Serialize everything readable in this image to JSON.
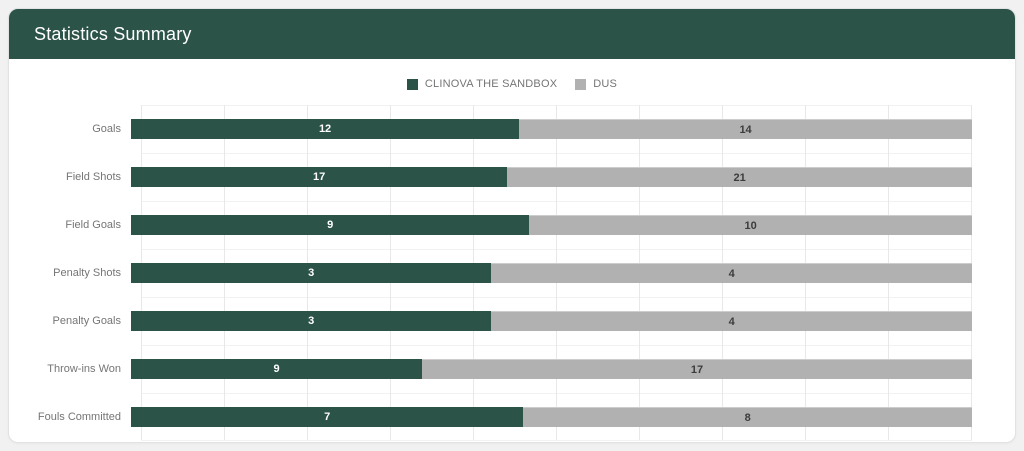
{
  "header": {
    "title": "Statistics Summary"
  },
  "colors": {
    "header_background": "#2b5348",
    "team_a_green": "#2b5348",
    "team_b_gray": "#b1b1b1",
    "label_gray": "#757575",
    "value_on_gray": "#3c3c3c",
    "gridline": "#e8e8e8",
    "card_background": "#ffffff",
    "page_background": "#f1f1f1"
  },
  "chart_data": {
    "type": "bar",
    "variant": "horizontal-100-percent-stacked",
    "title": "Statistics Summary",
    "xlabel": "",
    "ylabel": "",
    "grid": true,
    "legend_position": "top-center",
    "categories": [
      "Goals",
      "Field Shots",
      "Field Goals",
      "Penalty Shots",
      "Penalty Goals",
      "Throw-ins Won",
      "Fouls Committed"
    ],
    "series": [
      {
        "name": "CLINOVA THE SANDBOX",
        "color": "#2b5348",
        "values": [
          12,
          17,
          9,
          3,
          3,
          9,
          7
        ]
      },
      {
        "name": "DUS",
        "color": "#b1b1b1",
        "values": [
          14,
          21,
          10,
          4,
          4,
          17,
          8
        ]
      }
    ]
  }
}
